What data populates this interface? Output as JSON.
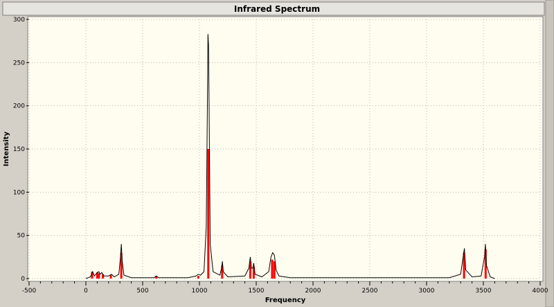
{
  "chart_data": {
    "type": "spectrum",
    "title": "Infrared Spectrum",
    "x_label": "Frequency",
    "y_label": "Intensity",
    "xlim": [
      -500,
      4000
    ],
    "ylim": [
      0,
      300
    ],
    "xticks": [
      -500,
      0,
      500,
      1000,
      1500,
      2000,
      2500,
      3000,
      3500,
      4000
    ],
    "yticks": [
      0,
      50,
      100,
      150,
      200,
      250,
      300
    ],
    "grid": true,
    "spectrum": {
      "color": "#000000",
      "x": [
        0,
        40,
        60,
        75,
        100,
        115,
        125,
        140,
        160,
        200,
        225,
        250,
        290,
        305,
        312,
        320,
        335,
        400,
        600,
        620,
        640,
        900,
        970,
        990,
        1010,
        1040,
        1060,
        1070,
        1075,
        1080,
        1085,
        1095,
        1120,
        1180,
        1195,
        1202,
        1210,
        1250,
        1400,
        1435,
        1448,
        1458,
        1470,
        1478,
        1490,
        1550,
        1610,
        1630,
        1645,
        1660,
        1675,
        1700,
        1800,
        3200,
        3300,
        3325,
        3333,
        3345,
        3400,
        3480,
        3510,
        3518,
        3528,
        3560,
        3600
      ],
      "y": [
        0,
        2,
        8,
        3,
        7,
        8,
        5,
        7,
        3,
        3,
        5,
        2,
        5,
        25,
        40,
        20,
        4,
        1,
        1,
        3,
        1,
        1,
        3,
        5,
        4,
        8,
        60,
        200,
        283,
        270,
        200,
        40,
        8,
        4,
        12,
        20,
        8,
        2,
        3,
        12,
        25,
        12,
        12,
        18,
        5,
        2,
        8,
        25,
        30,
        27,
        10,
        3,
        1,
        1,
        5,
        28,
        35,
        10,
        2,
        3,
        25,
        40,
        15,
        2,
        0
      ]
    },
    "sticks": {
      "color": "#ff0000",
      "x": [
        55,
        100,
        115,
        150,
        220,
        312,
        620,
        990,
        1078,
        1200,
        1448,
        1478,
        1640,
        1660,
        3330,
        3520
      ],
      "y": [
        8,
        7,
        6,
        5,
        4,
        30,
        3,
        3,
        150,
        15,
        20,
        14,
        22,
        20,
        30,
        34
      ]
    }
  }
}
